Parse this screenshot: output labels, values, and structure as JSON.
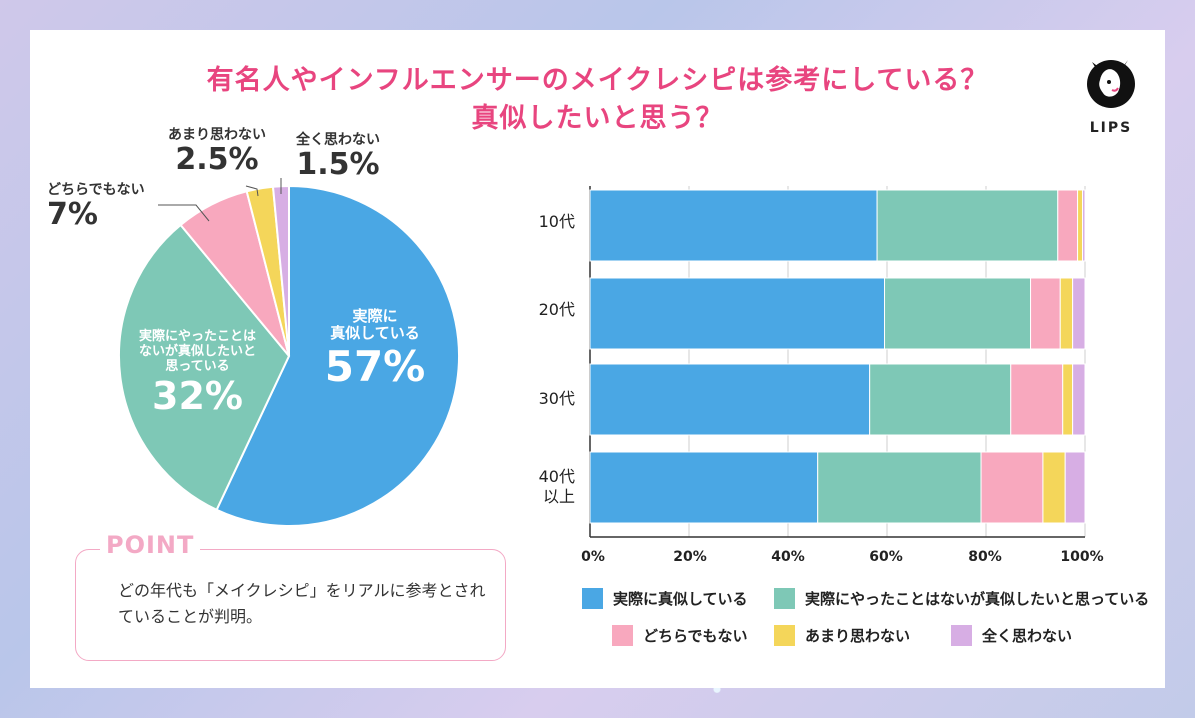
{
  "title": {
    "line1": "有名人やインフルエンサーのメイクレシピは参考にしている？",
    "line2": "真似したいと思う？"
  },
  "brand": {
    "name": "LIPS"
  },
  "colors": {
    "blue": "#4aa7e4",
    "teal": "#7ec8b6",
    "pink": "#f8a8be",
    "yellow": "#f4d65a",
    "purple": "#d7aee4"
  },
  "pie": {
    "slices": [
      {
        "name": "実際に真似している",
        "label_lines": [
          "実際に",
          "真似している"
        ],
        "value": 57,
        "value_label": "57%",
        "color": "#4aa7e4"
      },
      {
        "name": "実際にやったことはないが真似したいと思っている",
        "label_lines": [
          "実際にやったことは",
          "ないが真似したいと",
          "思っている"
        ],
        "value": 32,
        "value_label": "32%",
        "color": "#7ec8b6"
      },
      {
        "name": "どちらでもない",
        "label_lines": [
          "どちらでもない"
        ],
        "value": 7,
        "value_label": "7%",
        "color": "#f8a8be"
      },
      {
        "name": "あまり思わない",
        "label_lines": [
          "あまり思わない"
        ],
        "value": 2.5,
        "value_label": "2.5%",
        "color": "#f4d65a"
      },
      {
        "name": "全く思わない",
        "label_lines": [
          "全く思わない"
        ],
        "value": 1.5,
        "value_label": "1.5%",
        "color": "#d7aee4"
      }
    ]
  },
  "point": {
    "heading": "POINT",
    "text": "どの年代も「メイクレシピ」をリアルに参考とされていることが判明。"
  },
  "chart_data": [
    {
      "type": "pie",
      "title": "有名人やインフルエンサーのメイクレシピは参考にしている？真似したいと思う？",
      "categories": [
        "実際に真似している",
        "実際にやったことはないが真似したいと思っている",
        "どちらでもない",
        "あまり思わない",
        "全く思わない"
      ],
      "values": [
        57,
        32,
        7,
        2.5,
        1.5
      ]
    },
    {
      "type": "bar",
      "orientation": "horizontal",
      "stacked": true,
      "categories": [
        "10代",
        "20代",
        "30代",
        "40代以上"
      ],
      "category_lines": [
        [
          "10代"
        ],
        [
          "20代"
        ],
        [
          "30代"
        ],
        [
          "40代",
          "以上"
        ]
      ],
      "series": [
        {
          "name": "実際に真似している",
          "color": "#4aa7e4",
          "values": [
            58,
            59.5,
            56.5,
            46
          ]
        },
        {
          "name": "実際にやったことはないが真似したいと思っている",
          "color": "#7ec8b6",
          "values": [
            36.5,
            29.5,
            28.5,
            33
          ]
        },
        {
          "name": "どちらでもない",
          "color": "#f8a8be",
          "values": [
            4,
            6,
            10.5,
            12.5
          ]
        },
        {
          "name": "あまり思わない",
          "color": "#f4d65a",
          "values": [
            1,
            2.5,
            2,
            4.5
          ]
        },
        {
          "name": "全く思わない",
          "color": "#d7aee4",
          "values": [
            0.5,
            2.5,
            2.5,
            4
          ]
        }
      ],
      "xlim": [
        0,
        100
      ],
      "ticks": [
        "0%",
        "20%",
        "40%",
        "60%",
        "80%",
        "100%"
      ],
      "grid": true,
      "legend": "bottom"
    }
  ]
}
